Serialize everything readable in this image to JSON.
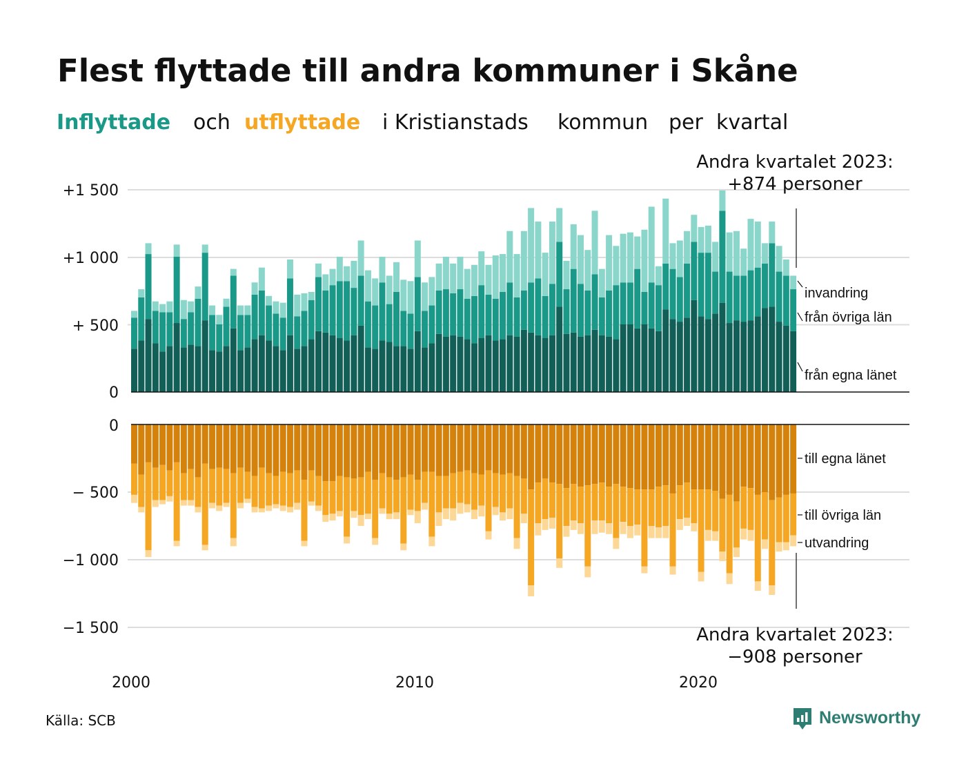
{
  "title": "Flest flyttade till andra kommuner i Skåne",
  "subtitle": {
    "part1": "Inflyttade",
    "part2": "och",
    "part3": "utflyttade",
    "part4": "i Kristianstads",
    "part5": "kommun",
    "part6": "per",
    "part7": "kvartal"
  },
  "annotation_top": {
    "line1": "Andra kvartalet 2023:",
    "line2": "+874 personer"
  },
  "annotation_bottom": {
    "line1": "Andra kvartalet 2023:",
    "line2": "−908 personer"
  },
  "source": "Källa: SCB",
  "logo": {
    "text": "Newsworthy",
    "icon": "newsworthy-chart-icon"
  },
  "colors": {
    "in_egna": "#125f57",
    "in_ovriga": "#1a9988",
    "in_invandring": "#8ad6cb",
    "out_egna": "#d4820b",
    "out_ovriga": "#f5a623",
    "out_utvandring": "#fcd795",
    "grid": "#dddddd"
  },
  "chart_data": {
    "type": "bar",
    "stacked": true,
    "x_ticks": [
      "2000",
      "2010",
      "2020"
    ],
    "y_ticks_top": [
      "0",
      "+  500",
      "+1 000",
      "+1 500"
    ],
    "y_ticks_bottom": [
      "0",
      "−  500",
      "−1 000",
      "−1 500"
    ],
    "ylim_top": [
      0,
      1500
    ],
    "ylim_bottom": [
      -1500,
      0
    ],
    "grid": true,
    "quarters_start": "2000 Q1",
    "quarters_end": "2023 Q2",
    "series_labels": {
      "invandring": "invandring",
      "ovriga_in": "från övriga län",
      "egna_in": "från egna länet",
      "egna_out": "till egna länet",
      "ovriga_out": "till övriga län",
      "utvandring": "utvandring"
    },
    "inflow": {
      "egna_lanet": [
        320,
        380,
        540,
        360,
        300,
        340,
        510,
        330,
        350,
        340,
        530,
        310,
        300,
        340,
        470,
        310,
        330,
        390,
        420,
        380,
        340,
        310,
        420,
        320,
        340,
        390,
        450,
        440,
        420,
        400,
        380,
        420,
        490,
        330,
        320,
        380,
        370,
        340,
        340,
        320,
        450,
        330,
        360,
        430,
        410,
        420,
        410,
        390,
        360,
        400,
        420,
        380,
        390,
        420,
        410,
        460,
        440,
        420,
        400,
        420,
        630,
        430,
        440,
        410,
        420,
        460,
        420,
        410,
        390,
        500,
        500,
        470,
        500,
        470,
        450,
        610,
        540,
        520,
        550,
        680,
        560,
        540,
        580,
        660,
        510,
        530,
        520,
        530,
        560,
        620,
        630,
        520,
        490,
        450
      ],
      "ovriga_lan": [
        230,
        320,
        480,
        240,
        290,
        250,
        490,
        210,
        240,
        350,
        500,
        260,
        200,
        290,
        390,
        260,
        240,
        330,
        330,
        260,
        240,
        240,
        420,
        240,
        260,
        290,
        400,
        310,
        370,
        420,
        440,
        350,
        370,
        340,
        320,
        430,
        280,
        400,
        260,
        260,
        400,
        270,
        280,
        320,
        350,
        310,
        350,
        300,
        350,
        390,
        300,
        310,
        350,
        390,
        290,
        290,
        370,
        420,
        310,
        380,
        480,
        330,
        470,
        390,
        330,
        410,
        280,
        340,
        400,
        310,
        310,
        440,
        240,
        340,
        340,
        340,
        370,
        330,
        400,
        430,
        470,
        490,
        310,
        680,
        380,
        330,
        340,
        370,
        360,
        330,
        470,
        370,
        370,
        310
      ],
      "invandring": [
        50,
        60,
        80,
        70,
        60,
        80,
        90,
        140,
        80,
        90,
        60,
        70,
        70,
        60,
        50,
        70,
        70,
        90,
        170,
        70,
        90,
        110,
        140,
        160,
        130,
        60,
        100,
        120,
        120,
        180,
        110,
        200,
        260,
        230,
        200,
        190,
        210,
        220,
        230,
        240,
        270,
        210,
        210,
        200,
        240,
        220,
        240,
        220,
        230,
        250,
        220,
        320,
        280,
        380,
        320,
        440,
        550,
        420,
        320,
        460,
        250,
        210,
        330,
        360,
        300,
        470,
        210,
        410,
        290,
        360,
        370,
        240,
        460,
        560,
        140,
        480,
        190,
        270,
        240,
        200,
        190,
        200,
        220,
        150,
        290,
        330,
        200,
        380,
        340,
        150,
        160,
        190,
        120,
        100
      ]
    },
    "outflow": {
      "egna_lanet": [
        -290,
        -370,
        -280,
        -320,
        -300,
        -340,
        -280,
        -360,
        -330,
        -390,
        -290,
        -330,
        -320,
        -330,
        -360,
        -320,
        -350,
        -380,
        -320,
        -360,
        -380,
        -350,
        -360,
        -340,
        -410,
        -340,
        -380,
        -420,
        -420,
        -380,
        -390,
        -400,
        -390,
        -350,
        -410,
        -360,
        -390,
        -410,
        -390,
        -370,
        -410,
        -350,
        -350,
        -380,
        -380,
        -360,
        -350,
        -340,
        -360,
        -370,
        -340,
        -360,
        -370,
        -360,
        -380,
        -400,
        -480,
        -430,
        -400,
        -430,
        -440,
        -470,
        -440,
        -460,
        -450,
        -440,
        -430,
        -460,
        -440,
        -460,
        -470,
        -480,
        -480,
        -480,
        -460,
        -450,
        -510,
        -450,
        -430,
        -480,
        -480,
        -480,
        -490,
        -550,
        -520,
        -570,
        -460,
        -470,
        -520,
        -500,
        -560,
        -540,
        -520,
        -510
      ],
      "ovriga_lan": [
        -230,
        -240,
        -650,
        -240,
        -260,
        -190,
        -580,
        -200,
        -230,
        -220,
        -600,
        -250,
        -280,
        -250,
        -480,
        -260,
        -200,
        -230,
        -300,
        -240,
        -210,
        -250,
        -250,
        -240,
        -450,
        -230,
        -220,
        -250,
        -240,
        -260,
        -440,
        -240,
        -280,
        -310,
        -430,
        -260,
        -270,
        -240,
        -490,
        -260,
        -230,
        -230,
        -480,
        -270,
        -240,
        -260,
        -230,
        -250,
        -270,
        -230,
        -450,
        -250,
        -280,
        -260,
        -460,
        -260,
        -710,
        -300,
        -300,
        -260,
        -550,
        -280,
        -270,
        -270,
        -600,
        -270,
        -280,
        -270,
        -400,
        -260,
        -280,
        -260,
        -570,
        -270,
        -300,
        -300,
        -540,
        -250,
        -260,
        -250,
        -610,
        -300,
        -300,
        -390,
        -580,
        -340,
        -310,
        -310,
        -640,
        -350,
        -630,
        -330,
        -350,
        -310
      ],
      "utvandring": [
        -60,
        -40,
        -50,
        -50,
        -30,
        -40,
        -40,
        -40,
        -40,
        -40,
        -40,
        -40,
        -40,
        -30,
        -60,
        -40,
        -30,
        -40,
        -30,
        -40,
        -30,
        -40,
        -40,
        -50,
        -40,
        -30,
        -40,
        -50,
        -50,
        -40,
        -50,
        -50,
        -80,
        -40,
        -50,
        -40,
        -40,
        -50,
        -50,
        -40,
        -90,
        -50,
        -70,
        -100,
        -80,
        -90,
        -80,
        -60,
        -70,
        -80,
        -60,
        -60,
        -60,
        -80,
        -80,
        -70,
        -80,
        -90,
        -80,
        -80,
        -70,
        -80,
        -70,
        -80,
        -80,
        -100,
        -90,
        -80,
        -80,
        -90,
        -90,
        -80,
        -50,
        -90,
        -80,
        -90,
        -60,
        -80,
        -60,
        -60,
        -70,
        -80,
        -70,
        -70,
        -80,
        -70,
        -80,
        -80,
        -70,
        -70,
        -70,
        -70,
        -60,
        -80
      ]
    }
  }
}
